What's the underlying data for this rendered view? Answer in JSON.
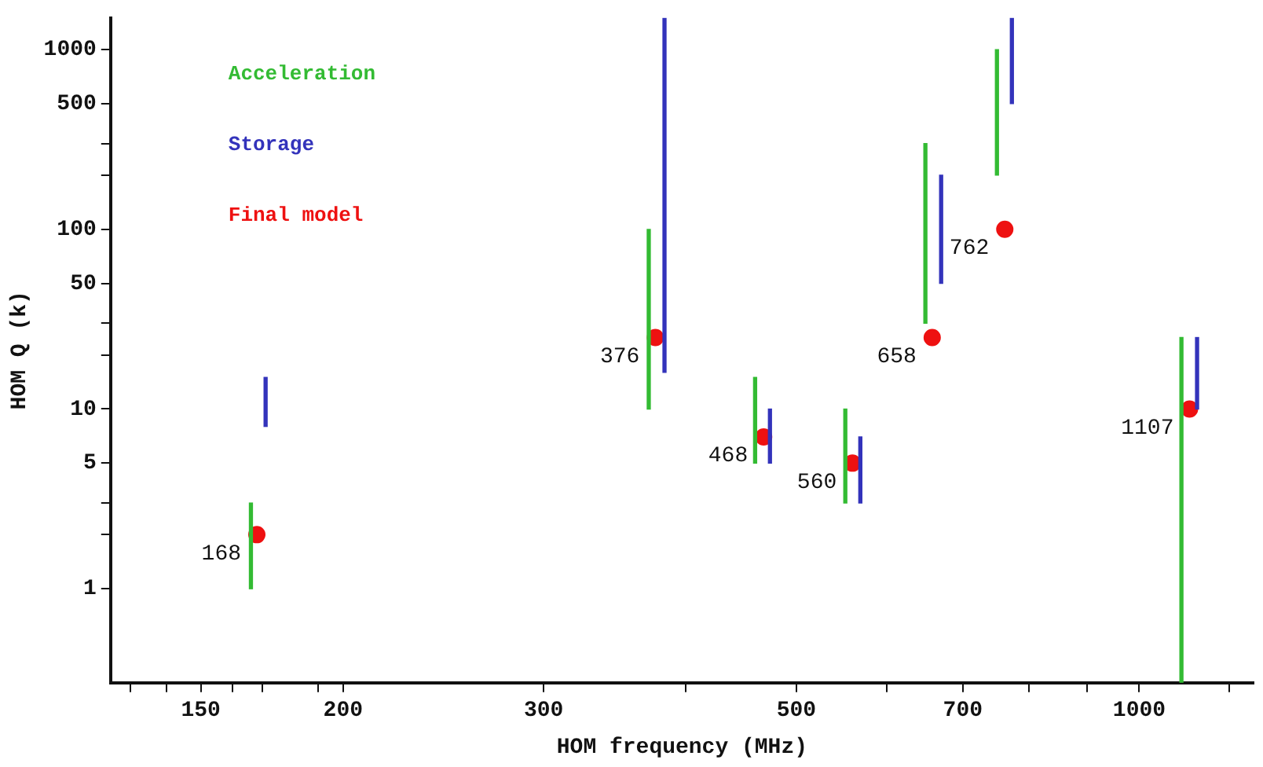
{
  "chart_data": {
    "type": "scatter",
    "xlabel": "HOM frequency (MHz)",
    "ylabel": "HOM Q (k)",
    "log": "xy",
    "grid": false,
    "legend": "top left",
    "marker": "circle",
    "xlim": [
      125,
      1260
    ],
    "xticks": [
      {
        "value": 130,
        "label": null
      },
      {
        "value": 140,
        "label": null
      },
      150,
      {
        "value": 160,
        "label": null
      },
      {
        "value": 170,
        "label": null
      },
      {
        "value": 190,
        "label": null
      },
      200,
      300,
      {
        "value": 400,
        "label": null
      },
      500,
      {
        "value": 600,
        "label": null
      },
      700,
      {
        "value": 800,
        "label": null
      },
      {
        "value": 900,
        "label": null
      },
      1000,
      {
        "value": 1200,
        "label": null
      }
    ],
    "ylim": [
      0.3,
      1500
    ],
    "yticks": [
      1,
      {
        "value": 2,
        "label": null
      },
      {
        "value": 3,
        "label": null
      },
      5,
      10,
      {
        "value": 20,
        "label": null
      },
      {
        "value": 30,
        "label": null
      },
      50,
      100,
      {
        "value": 200,
        "label": null
      },
      {
        "value": 300,
        "label": null
      },
      500,
      1000
    ],
    "series": [
      {
        "name": "Acceleration",
        "type": "bar",
        "color": "#33bb33",
        "x": [
          166,
          371,
          460,
          552,
          649,
          750,
          1089
        ],
        "base": [
          1,
          10,
          5,
          3,
          30,
          200,
          0.3
        ],
        "values": [
          2,
          90,
          10,
          7,
          270,
          800,
          24.7
        ]
      },
      {
        "name": "Storage",
        "type": "bar",
        "color": "#3333bb",
        "x": [
          171,
          383,
          474,
          569,
          670,
          773,
          1124
        ],
        "base": [
          8,
          16,
          5,
          3,
          50,
          500,
          10
        ],
        "values": [
          7,
          1484,
          5,
          4,
          150,
          1000,
          15
        ]
      },
      {
        "name": "Final model",
        "type": "scatter",
        "color": "#ee1111",
        "x": [
          168,
          376,
          468,
          560,
          658,
          762,
          1107
        ],
        "values": [
          2,
          25,
          7,
          5,
          25,
          100,
          10
        ]
      }
    ],
    "annotations": [
      {
        "text": "168",
        "x": 168,
        "y": 2
      },
      {
        "text": "376",
        "x": 376,
        "y": 25
      },
      {
        "text": "468",
        "x": 468,
        "y": 7
      },
      {
        "text": "560",
        "x": 560,
        "y": 5
      },
      {
        "text": "658",
        "x": 658,
        "y": 25
      },
      {
        "text": "762",
        "x": 762,
        "y": 100
      },
      {
        "text": "1107",
        "x": 1107,
        "y": 10
      }
    ]
  }
}
